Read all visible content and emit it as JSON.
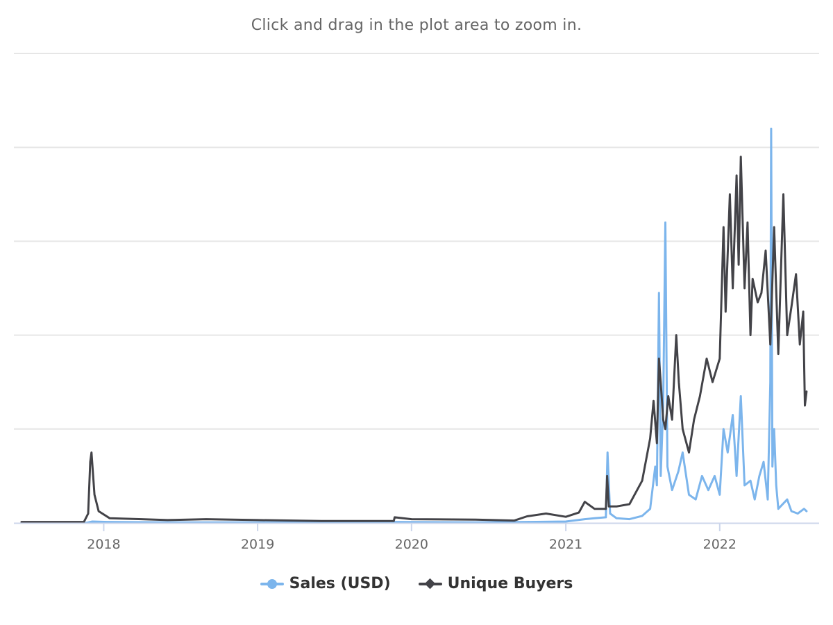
{
  "subtitle": "Click and drag in the plot area to zoom in.",
  "chart_data": {
    "type": "line",
    "title": "",
    "subtitle": "Click and drag in the plot area to zoom in.",
    "xlabel": "",
    "ylabel": "",
    "x_axis": {
      "type": "datetime",
      "tick_labels": [
        "2018",
        "2019",
        "2020",
        "2021",
        "2022"
      ],
      "range": [
        "2017-06-20",
        "2022-08-05"
      ]
    },
    "y_axis": {
      "tick_labels_shown": false,
      "gridlines": 6,
      "range_fraction": [
        0,
        1
      ]
    },
    "grid": true,
    "legend_position": "bottom-center",
    "value_note_scale": "relative (y axis unlabeled), 0-1 of axis height",
    "series": [
      {
        "name": "Sales (USD)",
        "color": "#7cb5ec",
        "marker": "circle",
        "points": [
          [
            "2017-06-20",
            0.0
          ],
          [
            "2017-11-20",
            0.0
          ],
          [
            "2017-12-05",
            0.003
          ],
          [
            "2018-01-10",
            0.002
          ],
          [
            "2018-06-01",
            0.001
          ],
          [
            "2019-01-01",
            0.001
          ],
          [
            "2019-06-01",
            0.001
          ],
          [
            "2019-11-20",
            0.002
          ],
          [
            "2020-06-01",
            0.001
          ],
          [
            "2020-10-01",
            0.002
          ],
          [
            "2021-01-01",
            0.003
          ],
          [
            "2021-02-15",
            0.008
          ],
          [
            "2021-03-10",
            0.01
          ],
          [
            "2021-04-06",
            0.012
          ],
          [
            "2021-04-10",
            0.15
          ],
          [
            "2021-04-16",
            0.02
          ],
          [
            "2021-05-01",
            0.01
          ],
          [
            "2021-06-01",
            0.008
          ],
          [
            "2021-07-01",
            0.015
          ],
          [
            "2021-07-20",
            0.03
          ],
          [
            "2021-08-01",
            0.12
          ],
          [
            "2021-08-05",
            0.08
          ],
          [
            "2021-08-10",
            0.49
          ],
          [
            "2021-08-14",
            0.1
          ],
          [
            "2021-08-20",
            0.25
          ],
          [
            "2021-08-25",
            0.64
          ],
          [
            "2021-08-30",
            0.12
          ],
          [
            "2021-09-10",
            0.07
          ],
          [
            "2021-09-25",
            0.11
          ],
          [
            "2021-10-05",
            0.15
          ],
          [
            "2021-10-20",
            0.06
          ],
          [
            "2021-11-05",
            0.05
          ],
          [
            "2021-11-20",
            0.1
          ],
          [
            "2021-12-05",
            0.07
          ],
          [
            "2021-12-20",
            0.1
          ],
          [
            "2022-01-01",
            0.06
          ],
          [
            "2022-01-10",
            0.2
          ],
          [
            "2022-01-20",
            0.15
          ],
          [
            "2022-02-01",
            0.23
          ],
          [
            "2022-02-10",
            0.1
          ],
          [
            "2022-02-20",
            0.27
          ],
          [
            "2022-03-01",
            0.08
          ],
          [
            "2022-03-15",
            0.09
          ],
          [
            "2022-03-25",
            0.05
          ],
          [
            "2022-04-05",
            0.1
          ],
          [
            "2022-04-15",
            0.13
          ],
          [
            "2022-04-25",
            0.05
          ],
          [
            "2022-05-01",
            0.3
          ],
          [
            "2022-05-03",
            0.84
          ],
          [
            "2022-05-06",
            0.12
          ],
          [
            "2022-05-10",
            0.2
          ],
          [
            "2022-05-15",
            0.08
          ],
          [
            "2022-05-20",
            0.03
          ],
          [
            "2022-06-10",
            0.05
          ],
          [
            "2022-06-20",
            0.025
          ],
          [
            "2022-07-05",
            0.02
          ],
          [
            "2022-07-20",
            0.03
          ],
          [
            "2022-07-26",
            0.025
          ]
        ]
      },
      {
        "name": "Unique Buyers",
        "color": "#434348",
        "marker": "diamond",
        "points": [
          [
            "2017-06-20",
            0.002
          ],
          [
            "2017-11-15",
            0.002
          ],
          [
            "2017-11-25",
            0.02
          ],
          [
            "2017-11-30",
            0.13
          ],
          [
            "2017-12-03",
            0.15
          ],
          [
            "2017-12-10",
            0.06
          ],
          [
            "2017-12-20",
            0.025
          ],
          [
            "2018-01-15",
            0.01
          ],
          [
            "2018-04-01",
            0.008
          ],
          [
            "2018-06-01",
            0.006
          ],
          [
            "2018-09-01",
            0.008
          ],
          [
            "2019-01-01",
            0.006
          ],
          [
            "2019-06-01",
            0.004
          ],
          [
            "2019-11-20",
            0.004
          ],
          [
            "2019-11-22",
            0.012
          ],
          [
            "2020-01-01",
            0.008
          ],
          [
            "2020-06-01",
            0.007
          ],
          [
            "2020-09-01",
            0.005
          ],
          [
            "2020-10-01",
            0.014
          ],
          [
            "2020-11-15",
            0.02
          ],
          [
            "2021-01-01",
            0.013
          ],
          [
            "2021-02-01",
            0.022
          ],
          [
            "2021-02-15",
            0.045
          ],
          [
            "2021-03-10",
            0.03
          ],
          [
            "2021-04-06",
            0.03
          ],
          [
            "2021-04-09",
            0.1
          ],
          [
            "2021-04-13",
            0.035
          ],
          [
            "2021-05-01",
            0.035
          ],
          [
            "2021-06-01",
            0.04
          ],
          [
            "2021-07-01",
            0.09
          ],
          [
            "2021-07-20",
            0.18
          ],
          [
            "2021-07-28",
            0.26
          ],
          [
            "2021-08-05",
            0.17
          ],
          [
            "2021-08-10",
            0.35
          ],
          [
            "2021-08-14",
            0.3
          ],
          [
            "2021-08-20",
            0.22
          ],
          [
            "2021-08-25",
            0.2
          ],
          [
            "2021-09-01",
            0.27
          ],
          [
            "2021-09-10",
            0.22
          ],
          [
            "2021-09-20",
            0.4
          ],
          [
            "2021-09-26",
            0.3
          ],
          [
            "2021-10-05",
            0.2
          ],
          [
            "2021-10-20",
            0.15
          ],
          [
            "2021-11-01",
            0.22
          ],
          [
            "2021-11-15",
            0.27
          ],
          [
            "2021-12-01",
            0.35
          ],
          [
            "2021-12-15",
            0.3
          ],
          [
            "2022-01-01",
            0.35
          ],
          [
            "2022-01-10",
            0.63
          ],
          [
            "2022-01-15",
            0.45
          ],
          [
            "2022-01-25",
            0.7
          ],
          [
            "2022-02-01",
            0.5
          ],
          [
            "2022-02-10",
            0.74
          ],
          [
            "2022-02-15",
            0.55
          ],
          [
            "2022-02-20",
            0.78
          ],
          [
            "2022-03-01",
            0.5
          ],
          [
            "2022-03-08",
            0.64
          ],
          [
            "2022-03-15",
            0.4
          ],
          [
            "2022-03-20",
            0.52
          ],
          [
            "2022-04-01",
            0.47
          ],
          [
            "2022-04-10",
            0.49
          ],
          [
            "2022-04-20",
            0.58
          ],
          [
            "2022-05-01",
            0.38
          ],
          [
            "2022-05-10",
            0.63
          ],
          [
            "2022-05-20",
            0.36
          ],
          [
            "2022-06-01",
            0.7
          ],
          [
            "2022-06-10",
            0.4
          ],
          [
            "2022-06-20",
            0.46
          ],
          [
            "2022-07-01",
            0.53
          ],
          [
            "2022-07-10",
            0.38
          ],
          [
            "2022-07-18",
            0.45
          ],
          [
            "2022-07-22",
            0.25
          ],
          [
            "2022-07-26",
            0.28
          ]
        ]
      }
    ]
  },
  "legend": {
    "items": [
      {
        "label": "Sales (USD)",
        "color": "#7cb5ec",
        "marker": "circle"
      },
      {
        "label": "Unique Buyers",
        "color": "#434348",
        "marker": "diamond"
      }
    ]
  }
}
